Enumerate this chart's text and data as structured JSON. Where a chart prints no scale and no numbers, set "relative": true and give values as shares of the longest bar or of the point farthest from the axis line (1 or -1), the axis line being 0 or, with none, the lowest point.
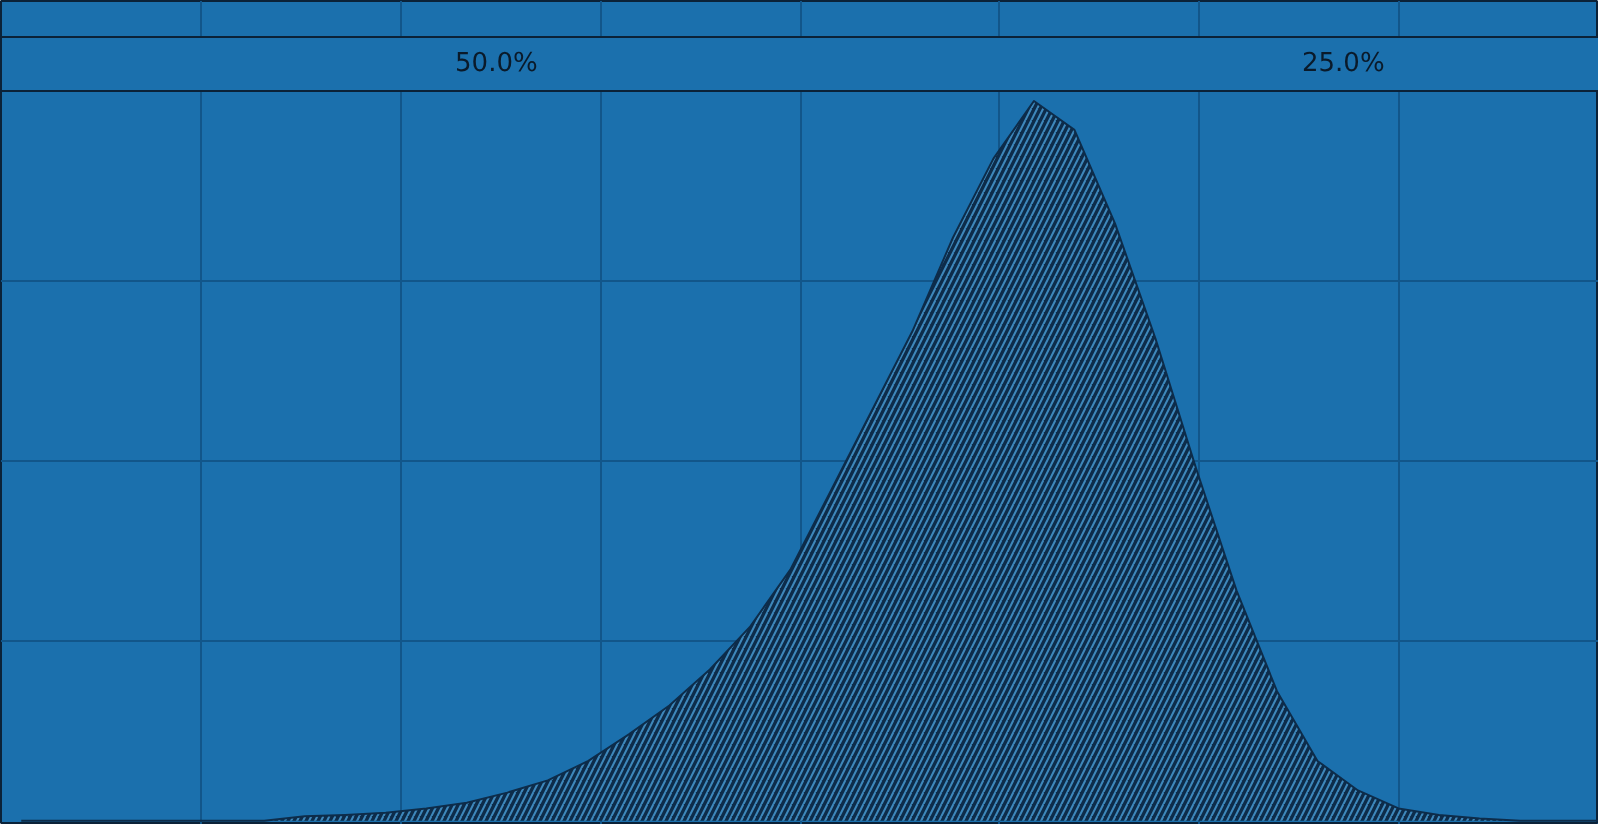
{
  "chart_data": {
    "type": "area",
    "relative": true,
    "grid": true,
    "categories": [
      null,
      null,
      null,
      null,
      null,
      null,
      null,
      null,
      null,
      null,
      null,
      null,
      null,
      null,
      null,
      null,
      null,
      null,
      null,
      null,
      null,
      null,
      null,
      null,
      null,
      null,
      null,
      null,
      null,
      null,
      null,
      null,
      null,
      null,
      null,
      null,
      null,
      null,
      null,
      null
    ],
    "values": [
      0,
      0,
      0,
      0,
      0,
      0,
      0,
      0.006,
      0.008,
      0.011,
      0.017,
      0.025,
      0.039,
      0.056,
      0.083,
      0.12,
      0.16,
      0.21,
      0.27,
      0.35,
      0.46,
      0.57,
      0.68,
      0.81,
      0.92,
      1,
      0.96,
      0.83,
      0.67,
      0.49,
      0.32,
      0.18,
      0.083,
      0.042,
      0.017,
      0.008,
      0.003,
      0,
      0,
      0
    ],
    "color": "#0d2c4a",
    "annotations": [
      "50.0%",
      "25.0%"
    ]
  }
}
